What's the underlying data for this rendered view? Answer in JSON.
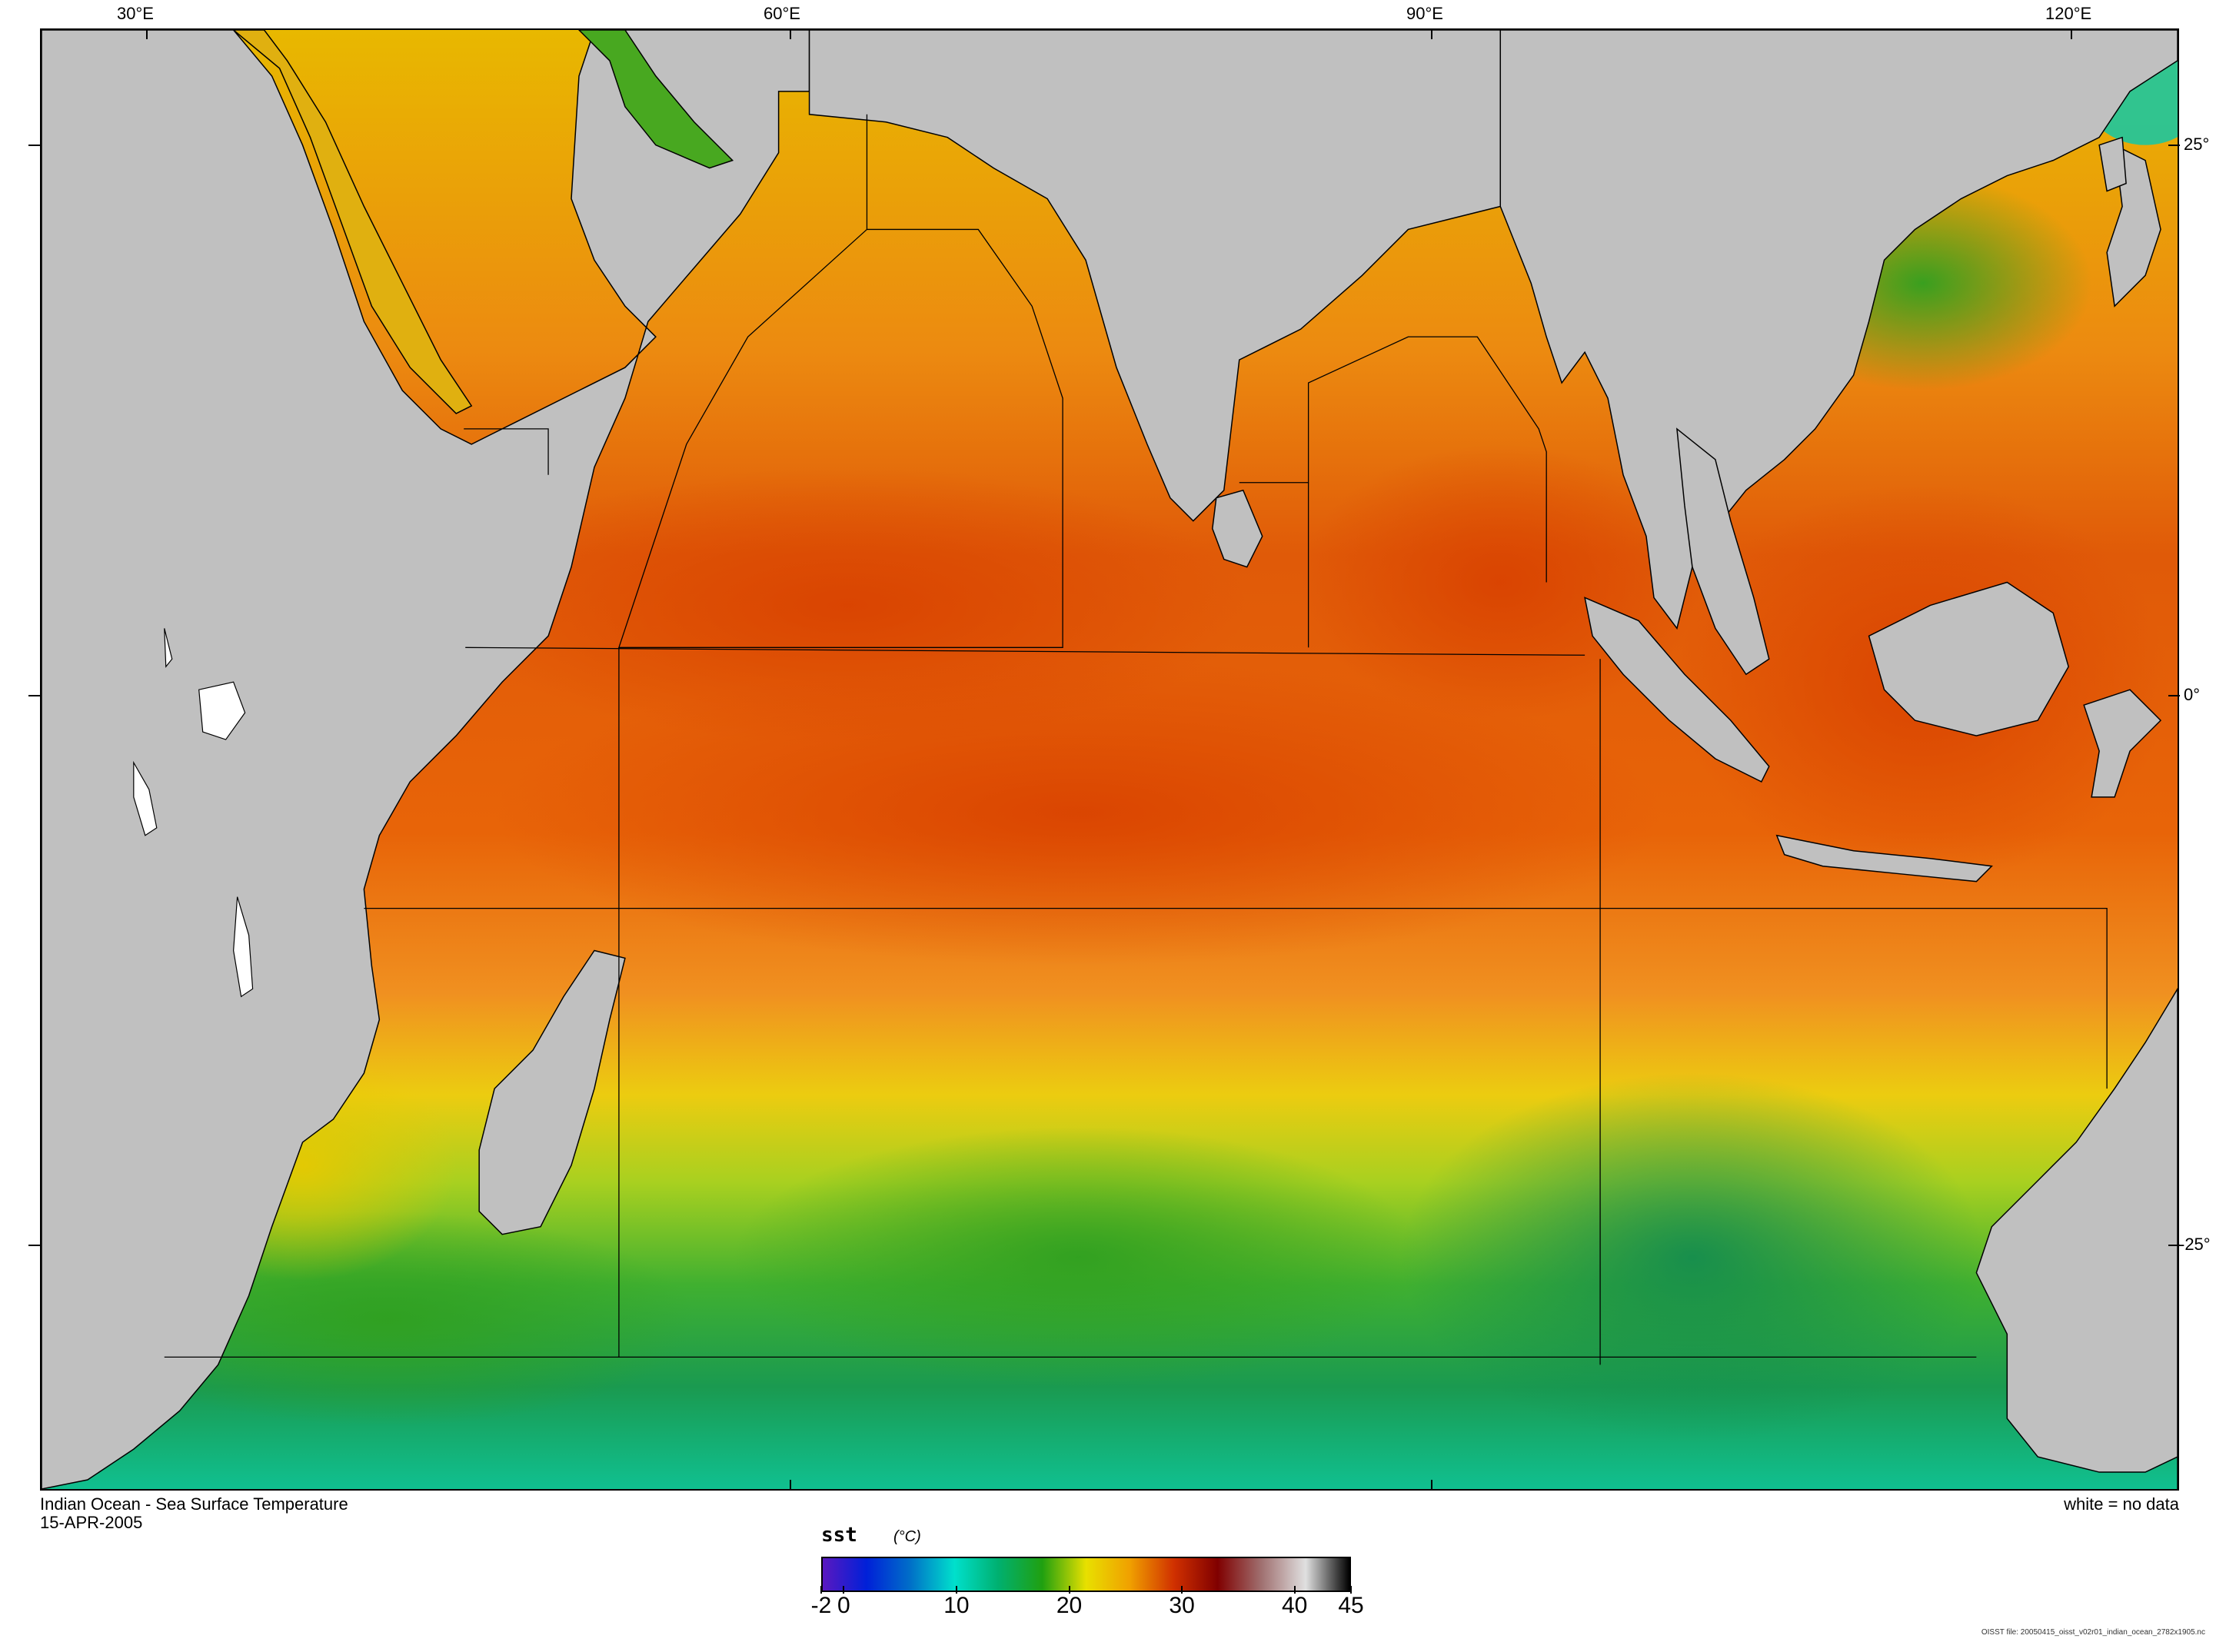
{
  "map": {
    "title": "Indian Ocean - Sea Surface Temperature",
    "date": "15-APR-2005",
    "no_data_note": "white = no data",
    "file_note": "OISST file: 20050415_oisst_v02r01_indian_ocean_2782x1905.nc",
    "longitude_labels": [
      "30°E",
      "60°E",
      "90°E",
      "120°E"
    ],
    "latitude_labels": [
      "25°",
      "0°",
      "-25°"
    ],
    "land_color": "#c0c0c0",
    "no_data_color": "#ffffff"
  },
  "colorbar": {
    "variable": "sst",
    "units": "(°C)",
    "range": [
      -2,
      45
    ],
    "tick_labels": [
      "-2",
      "0",
      "10",
      "20",
      "30",
      "40",
      "45"
    ],
    "tick_values": [
      -2,
      0,
      10,
      20,
      30,
      40,
      45
    ],
    "colors": [
      "#5a18c0",
      "#0020d8",
      "#0070c8",
      "#00e0cc",
      "#00b070",
      "#20a010",
      "#e8e000",
      "#f0a000",
      "#d03000",
      "#800000",
      "#a07070",
      "#e0e0e0",
      "#000000"
    ]
  }
}
